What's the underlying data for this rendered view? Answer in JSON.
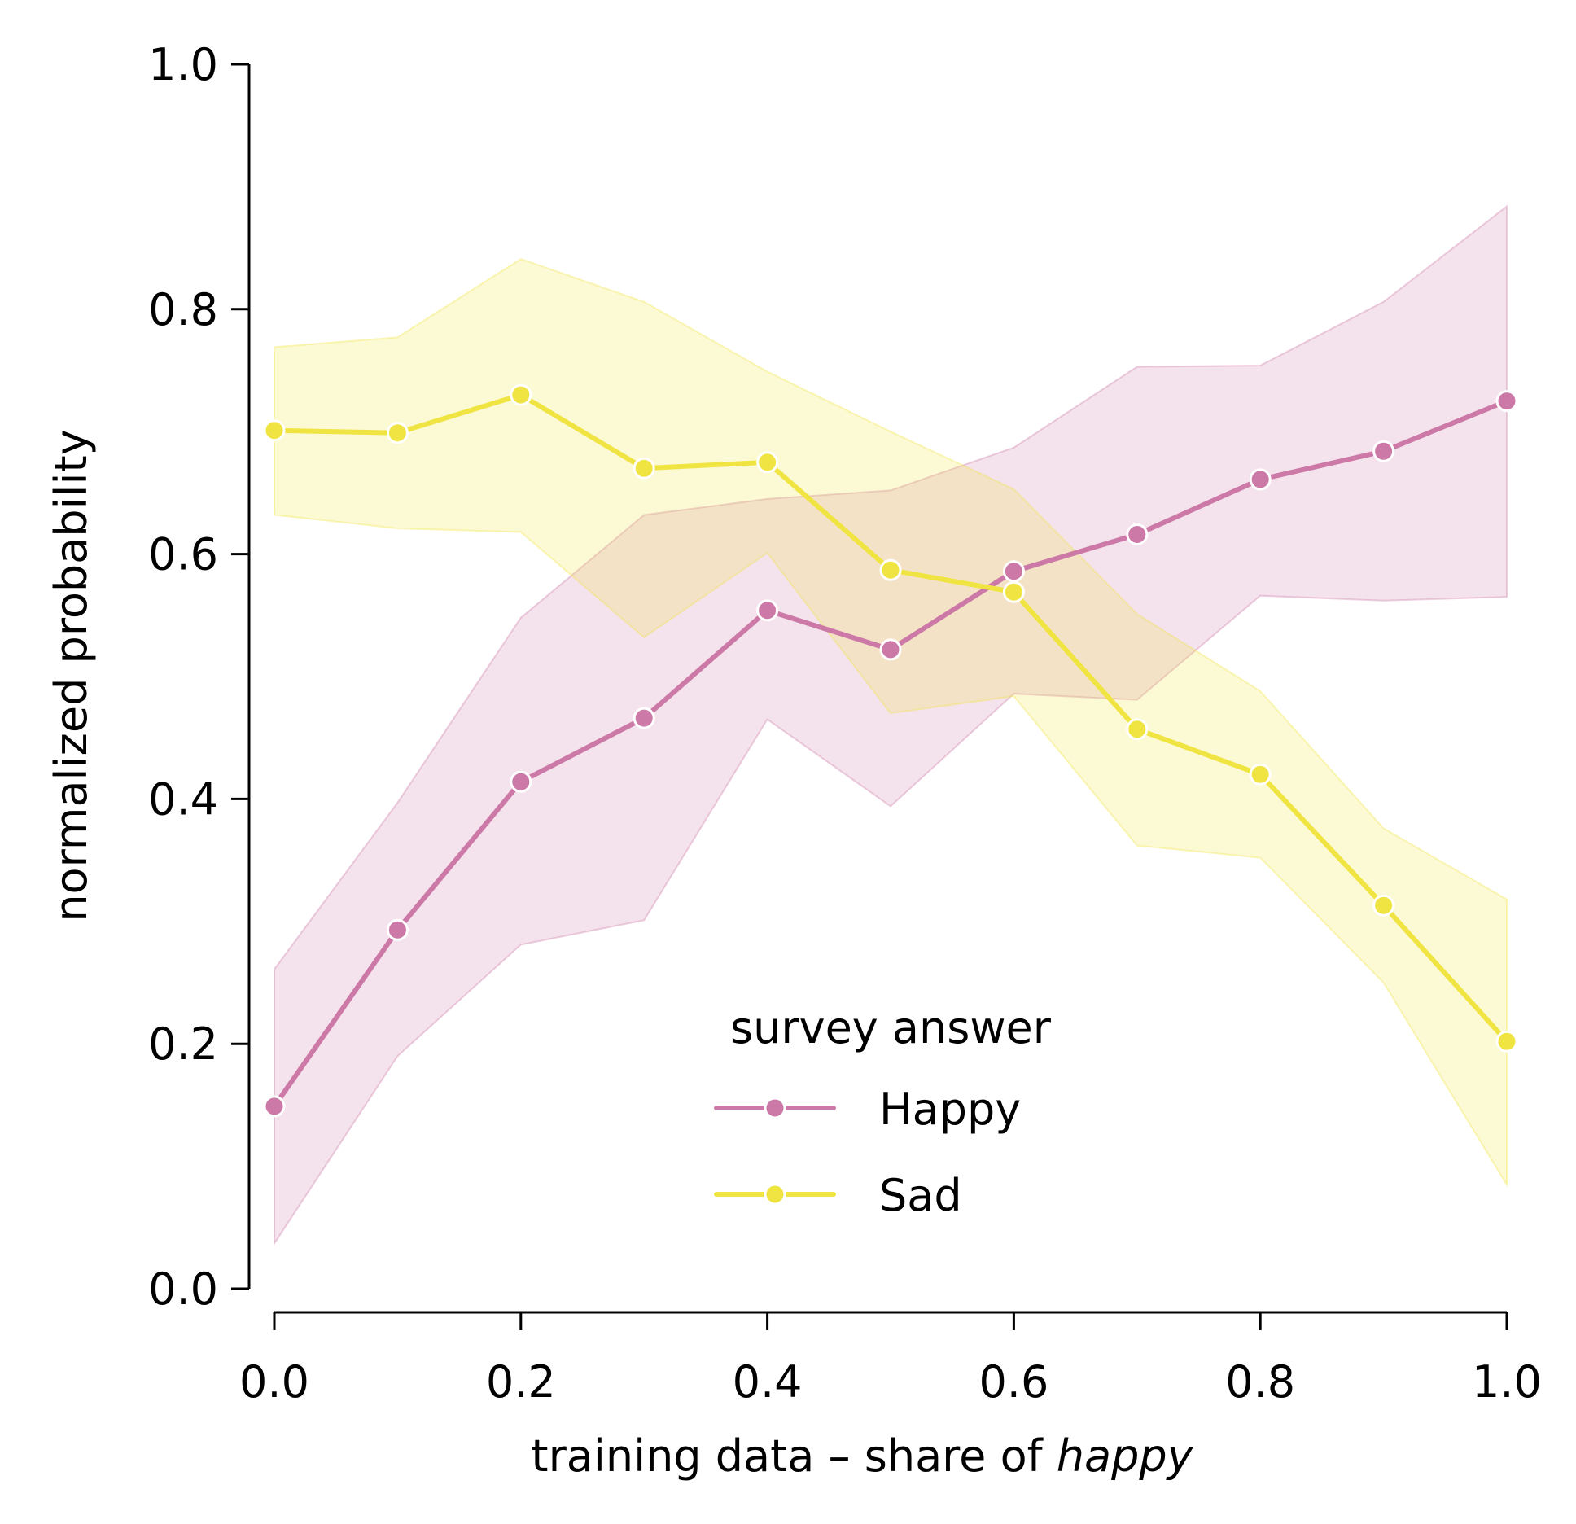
{
  "chart_data": {
    "type": "line",
    "title": "",
    "xlabel_prefix": "training data – share of ",
    "xlabel_italic": "happy",
    "ylabel": "normalized probability",
    "xlim": [
      0.0,
      1.0
    ],
    "ylim": [
      0.0,
      1.0
    ],
    "grid": false,
    "x": [
      0.0,
      0.1,
      0.2,
      0.3,
      0.4,
      0.5,
      0.6,
      0.7,
      0.8,
      0.9,
      1.0
    ],
    "x_ticks": [
      "0.0",
      "0.2",
      "0.4",
      "0.6",
      "0.8",
      "1.0"
    ],
    "y_ticks": [
      "0.0",
      "0.2",
      "0.4",
      "0.6",
      "0.8",
      "1.0"
    ],
    "x_tick_values": [
      0.0,
      0.2,
      0.4,
      0.6,
      0.8,
      1.0
    ],
    "y_tick_values": [
      0.0,
      0.2,
      0.4,
      0.6,
      0.8,
      1.0
    ],
    "legend": {
      "title": "survey answer",
      "placement": "lower-center"
    },
    "series": [
      {
        "name": "Happy",
        "color": "#cc79a7",
        "values": [
          0.149,
          0.293,
          0.414,
          0.466,
          0.554,
          0.522,
          0.586,
          0.616,
          0.661,
          0.684,
          0.725
        ],
        "lower": [
          0.037,
          0.19,
          0.281,
          0.301,
          0.465,
          0.394,
          0.486,
          0.481,
          0.566,
          0.562,
          0.565
        ],
        "upper": [
          0.261,
          0.397,
          0.548,
          0.632,
          0.645,
          0.652,
          0.687,
          0.753,
          0.754,
          0.806,
          0.884
        ]
      },
      {
        "name": "Sad",
        "color": "#f0e442",
        "values": [
          0.701,
          0.699,
          0.73,
          0.67,
          0.675,
          0.587,
          0.569,
          0.457,
          0.42,
          0.313,
          0.202
        ],
        "lower": [
          0.632,
          0.621,
          0.618,
          0.532,
          0.601,
          0.47,
          0.484,
          0.362,
          0.352,
          0.25,
          0.085
        ],
        "upper": [
          0.769,
          0.777,
          0.841,
          0.806,
          0.749,
          0.7,
          0.653,
          0.551,
          0.488,
          0.376,
          0.318
        ]
      }
    ]
  }
}
